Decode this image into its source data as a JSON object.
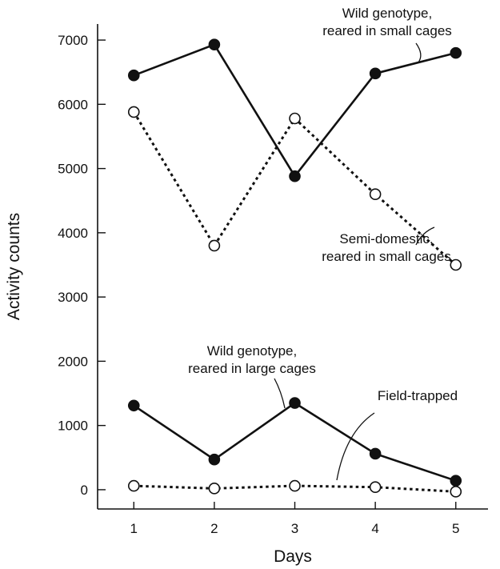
{
  "chart_data": {
    "type": "line",
    "title": "",
    "xlabel": "Days",
    "ylabel": "Activity counts",
    "x": [
      1,
      2,
      3,
      4,
      5
    ],
    "x_ticks": [
      "1",
      "2",
      "3",
      "4",
      "5"
    ],
    "xlim": [
      0.55,
      5.4
    ],
    "y_ticks": [
      "0",
      "1000",
      "2000",
      "3000",
      "4000",
      "5000",
      "6000",
      "7000"
    ],
    "y_tick_values": [
      0,
      1000,
      2000,
      3000,
      4000,
      5000,
      6000,
      7000
    ],
    "ylim": [
      -300,
      7250
    ],
    "grid": false,
    "legend": "none",
    "series": [
      {
        "key": "wild_small",
        "name": "Wild genotype, reared in small cages",
        "values": [
          6450,
          6930,
          4880,
          6480,
          6800
        ],
        "line_style": "solid",
        "marker": "filled-circle",
        "color": "#111111",
        "annotation_lines": [
          "Wild genotype,",
          "reared in small cages"
        ]
      },
      {
        "key": "semi_small",
        "name": "Semi-domestic, reared in small cages",
        "values": [
          5880,
          3800,
          5780,
          4600,
          3500
        ],
        "line_style": "dotted",
        "marker": "open-circle",
        "color": "#111111",
        "annotation_lines": [
          "Semi-domestic,",
          "reared in small cages"
        ]
      },
      {
        "key": "wild_large",
        "name": "Wild genotype, reared in large cages",
        "values": [
          1310,
          470,
          1350,
          560,
          140
        ],
        "line_style": "solid",
        "marker": "filled-circle",
        "color": "#111111",
        "annotation_lines": [
          "Wild genotype,",
          "reared in large cages"
        ]
      },
      {
        "key": "field",
        "name": "Field-trapped",
        "values": [
          60,
          20,
          60,
          40,
          -30
        ],
        "line_style": "dotted",
        "marker": "open-circle",
        "color": "#111111",
        "annotation_lines": [
          "Field-trapped"
        ]
      }
    ]
  }
}
